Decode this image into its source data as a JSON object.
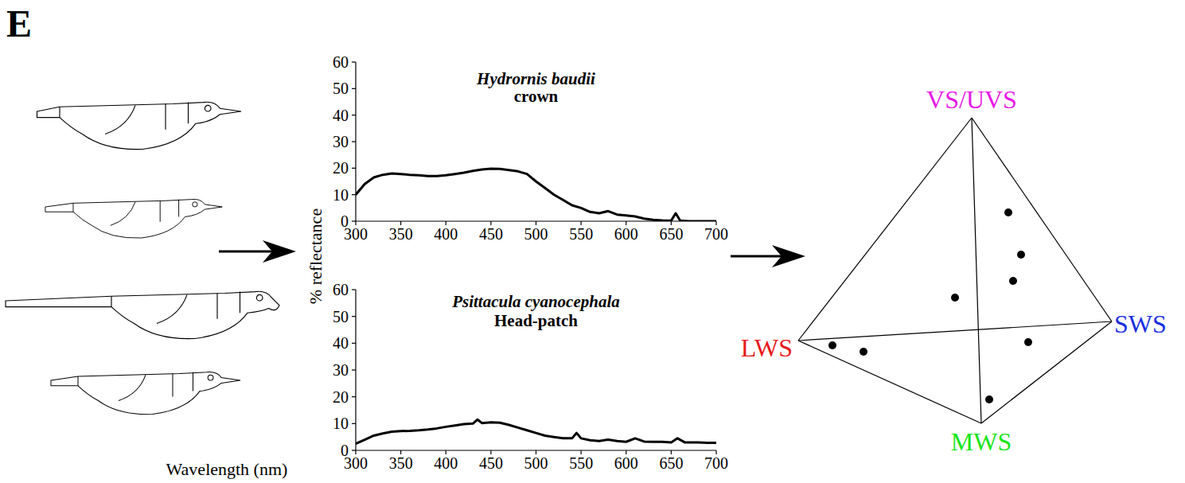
{
  "panel_label": "E",
  "x_label": "Wavelength (nm)",
  "y_label": "% reflectance",
  "chart_data": [
    {
      "type": "line",
      "title": "Hydrornis baudii",
      "subtitle": "crown",
      "x": [
        300,
        310,
        320,
        330,
        340,
        350,
        360,
        370,
        380,
        390,
        400,
        410,
        420,
        430,
        440,
        450,
        460,
        470,
        480,
        490,
        500,
        510,
        520,
        530,
        540,
        550,
        560,
        570,
        580,
        590,
        600,
        610,
        620,
        630,
        640,
        650,
        655,
        660,
        670,
        680,
        690,
        700
      ],
      "values": [
        10,
        14,
        16.5,
        17.5,
        18,
        17.8,
        17.5,
        17.3,
        17,
        17,
        17.3,
        17.8,
        18.3,
        19,
        19.5,
        19.8,
        19.7,
        19.3,
        18.8,
        17.8,
        15,
        12.5,
        10,
        8,
        6,
        5,
        3.5,
        3,
        3.8,
        2.5,
        2.2,
        1.8,
        1,
        0.5,
        0.3,
        0.2,
        3,
        0.2,
        0,
        0,
        0,
        0
      ],
      "color": "#000000",
      "xlim": [
        300,
        700
      ],
      "ylim": [
        0,
        60
      ],
      "xticks": [
        300,
        350,
        400,
        450,
        500,
        550,
        600,
        650,
        700
      ],
      "yticks": [
        0,
        10,
        20,
        30,
        40,
        50,
        60
      ]
    },
    {
      "type": "line",
      "title": "Psittacula cyanocephala",
      "subtitle": "Head-patch",
      "x": [
        300,
        310,
        320,
        330,
        340,
        350,
        360,
        370,
        380,
        390,
        400,
        410,
        420,
        430,
        435,
        440,
        450,
        460,
        470,
        480,
        490,
        500,
        510,
        520,
        530,
        540,
        545,
        550,
        560,
        570,
        580,
        590,
        600,
        610,
        620,
        630,
        640,
        650,
        657,
        665,
        670,
        680,
        690,
        700
      ],
      "values": [
        2.5,
        4,
        5.5,
        6.3,
        7,
        7.2,
        7.3,
        7.5,
        7.8,
        8.2,
        8.8,
        9.3,
        9.8,
        10,
        11.5,
        10.2,
        10.5,
        10.3,
        9.5,
        8.5,
        7.5,
        6.5,
        5.5,
        5,
        4.5,
        4.5,
        6.5,
        4.5,
        3.8,
        3.5,
        4,
        3.5,
        3.2,
        4.5,
        3.3,
        3.2,
        3.2,
        3,
        4.5,
        3,
        3,
        3,
        2.8,
        2.8
      ],
      "color": "#000000",
      "xlim": [
        300,
        700
      ],
      "ylim": [
        0,
        60
      ],
      "xticks": [
        300,
        350,
        400,
        450,
        500,
        550,
        600,
        650,
        700
      ],
      "yticks": [
        0,
        10,
        20,
        30,
        40,
        50,
        60
      ]
    }
  ],
  "color_space": {
    "vertices": [
      {
        "label": "VS/UVS",
        "color": "#e619e6"
      },
      {
        "label": "LWS",
        "color": "#e8191a"
      },
      {
        "label": "SWS",
        "color": "#1a2fe0"
      },
      {
        "label": "MWS",
        "color": "#19e619"
      }
    ]
  }
}
